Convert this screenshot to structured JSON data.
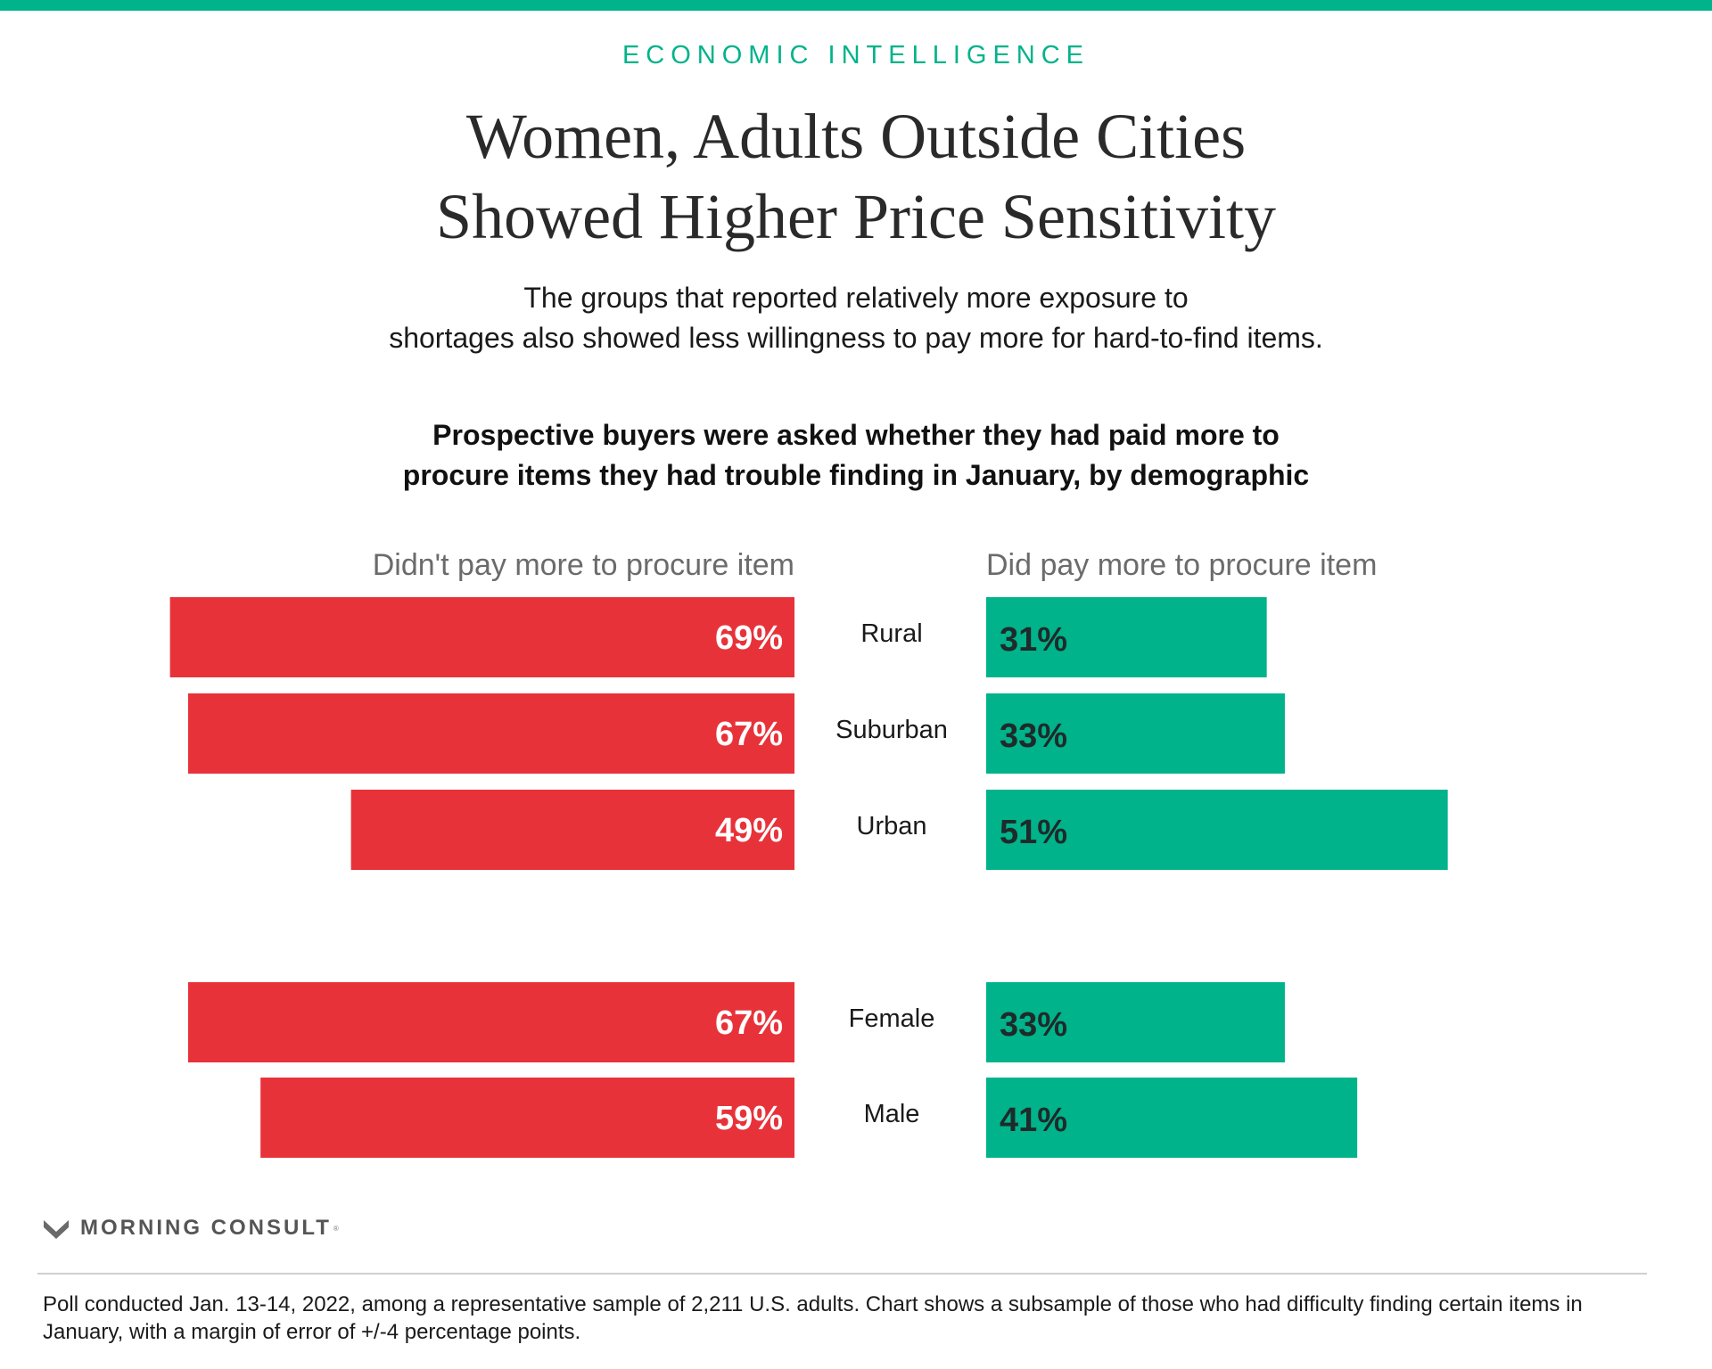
{
  "header": {
    "kicker": "ECONOMIC INTELLIGENCE",
    "title_lines": [
      "Women, Adults Outside Cities",
      "Showed Higher Price Sensitivity"
    ],
    "subtitle_lines": [
      "The groups that reported relatively more exposure to",
      "shortages also showed less willingness to pay more for hard-to-find items."
    ]
  },
  "chart_title_lines": [
    "Prospective buyers were asked whether they had paid more to",
    "procure items they had trouble finding in January, by demographic"
  ],
  "colors": {
    "accent": "#00b38a",
    "red": "#e8323a",
    "green": "#00b38a",
    "header_gray": "#6b6b6b"
  },
  "chart_data": {
    "type": "bar",
    "orientation": "diverging-horizontal",
    "categories": [
      "Rural",
      "Suburban",
      "Urban",
      "Female",
      "Male"
    ],
    "groups": [
      [
        "Rural",
        "Suburban",
        "Urban"
      ],
      [
        "Female",
        "Male"
      ]
    ],
    "series": [
      {
        "name": "Didn't pay more to procure item",
        "values": [
          69,
          67,
          49,
          67,
          59
        ],
        "labels": [
          "69%",
          "67%",
          "49%",
          "67%",
          "59%"
        ]
      },
      {
        "name": "Did pay more to procure item",
        "values": [
          31,
          33,
          51,
          33,
          41
        ],
        "labels": [
          "31%",
          "33%",
          "51%",
          "33%",
          "41%"
        ]
      }
    ],
    "unit": "%",
    "xlim": [
      0,
      100
    ],
    "grid": false
  },
  "brand": {
    "logo_icon": "morning-consult-m-icon",
    "name": "MORNING CONSULT",
    "reg_mark": "®"
  },
  "footnote": "Poll conducted Jan. 13-14, 2022, among a representative sample of 2,211 U.S. adults. Chart shows a subsample of those who had difficulty finding certain items in January, with a margin of error of +/-4 percentage points."
}
